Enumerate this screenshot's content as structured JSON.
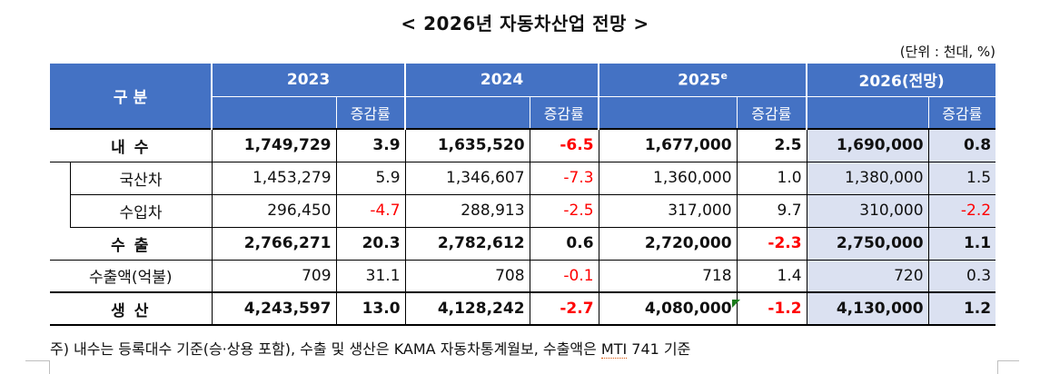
{
  "title": "< 2026년 자동차산업 전망 >",
  "unit": "(단위 : 천대, %)",
  "header": {
    "category": "구   분",
    "y2023": "2023",
    "y2024": "2024",
    "y2025": "2025",
    "y2025_sup": "e",
    "y2026": "2026(전망)",
    "change": "증감률"
  },
  "rows": [
    {
      "label": "내 수",
      "v2023": "1,749,729",
      "c2023": "3.9",
      "v2024": "1,635,520",
      "c2024": "-6.5",
      "v2025": "1,677,000",
      "c2025": "2.5",
      "v2026": "1,690,000",
      "c2026": "0.8"
    },
    {
      "label": "국산차",
      "v2023": "1,453,279",
      "c2023": "5.9",
      "v2024": "1,346,607",
      "c2024": "-7.3",
      "v2025": "1,360,000",
      "c2025": "1.0",
      "v2026": "1,380,000",
      "c2026": "1.5"
    },
    {
      "label": "수입차",
      "v2023": "296,450",
      "c2023": "-4.7",
      "v2024": "288,913",
      "c2024": "-2.5",
      "v2025": "317,000",
      "c2025": "9.7",
      "v2026": "310,000",
      "c2026": "-2.2"
    },
    {
      "label": "수 출",
      "v2023": "2,766,271",
      "c2023": "20.3",
      "v2024": "2,782,612",
      "c2024": "0.6",
      "v2025": "2,720,000",
      "c2025": "-2.3",
      "v2026": "2,750,000",
      "c2026": "1.1"
    },
    {
      "label": "수출액(억불)",
      "v2023": "709",
      "c2023": "31.1",
      "v2024": "708",
      "c2024": "-0.1",
      "v2025": "718",
      "c2025": "1.4",
      "v2026": "720",
      "c2026": "0.3"
    },
    {
      "label": "생 산",
      "v2023": "4,243,597",
      "c2023": "13.0",
      "v2024": "4,128,242",
      "c2024": "-2.7",
      "v2025": "4,080,000",
      "c2025": "-1.2",
      "v2026": "4,130,000",
      "c2026": "1.2"
    }
  ],
  "note": {
    "prefix": "주) 내수는 등록대수 기준(승·상용 포함), 수출 및 생산은 KAMA 자동차통계월보, 수출액은 ",
    "underlined": "MTI",
    "suffix": " 741 기준"
  },
  "colors": {
    "header_bg": "#4472c4",
    "shade_2026": "#dbe1f1",
    "negative": "#ff0000"
  }
}
